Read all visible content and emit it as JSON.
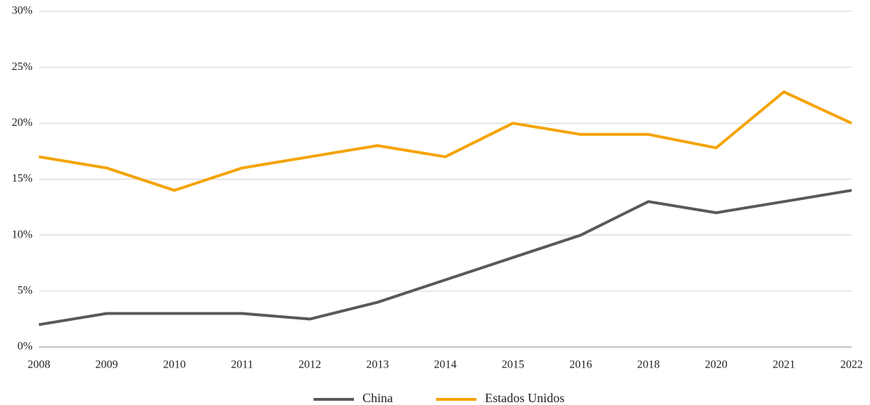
{
  "chart_data": {
    "type": "line",
    "categories": [
      "2008",
      "2009",
      "2010",
      "2011",
      "2012",
      "2013",
      "2014",
      "2015",
      "2016",
      "2018",
      "2020",
      "2021",
      "2022"
    ],
    "series": [
      {
        "name": "China",
        "color": "#595959",
        "values": [
          2,
          3,
          3,
          3,
          2.5,
          4,
          6,
          8,
          10,
          13,
          12,
          13,
          14
        ]
      },
      {
        "name": "Estados Unidos",
        "color": "#f5a300",
        "values": [
          17,
          16,
          14,
          16,
          17,
          18,
          17,
          20,
          19,
          19,
          17.8,
          22.8,
          20
        ]
      }
    ],
    "ylim": [
      0,
      30
    ],
    "yticks": [
      {
        "value": 0,
        "label": "0%"
      },
      {
        "value": 5,
        "label": "5%"
      },
      {
        "value": 10,
        "label": "10%"
      },
      {
        "value": 15,
        "label": "15%"
      },
      {
        "value": 20,
        "label": "20%"
      },
      {
        "value": 25,
        "label": "25%"
      },
      {
        "value": 30,
        "label": "30%"
      }
    ],
    "grid": true,
    "legend": "bottom"
  }
}
